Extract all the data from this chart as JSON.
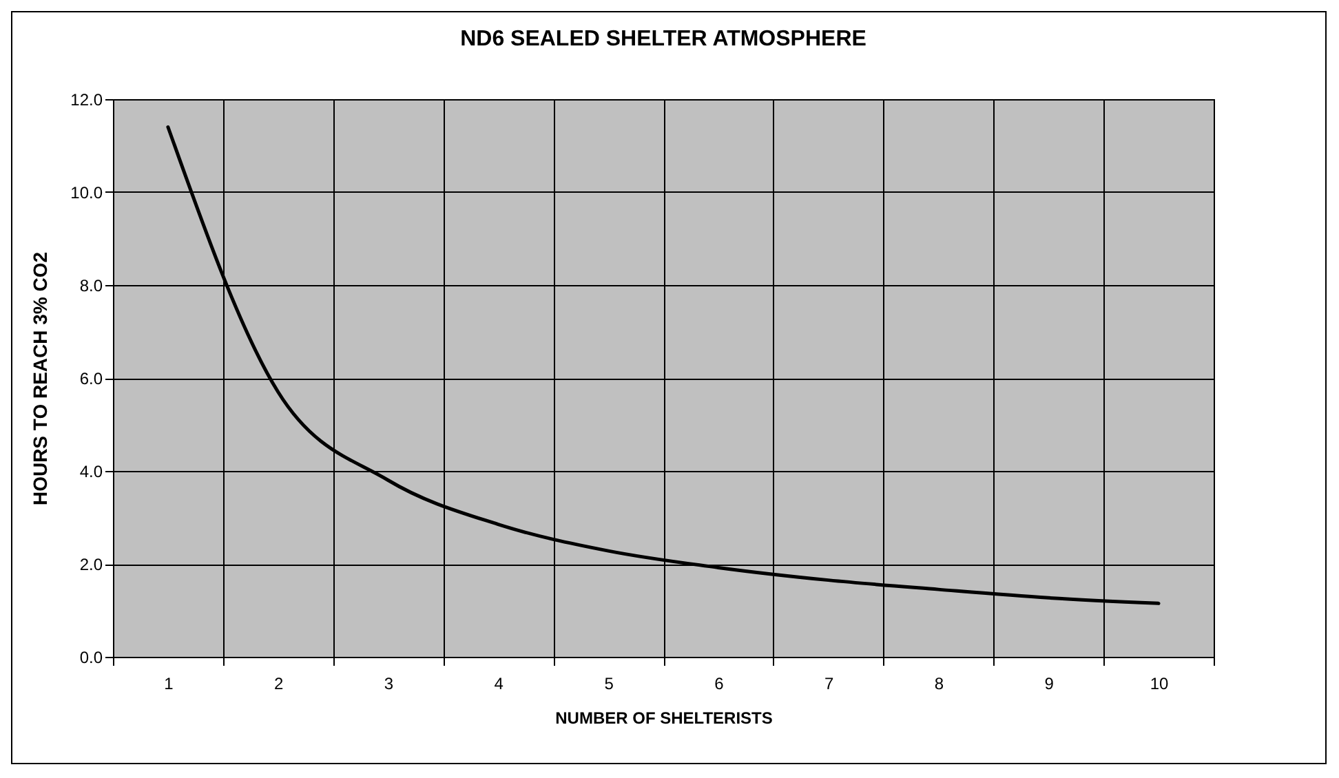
{
  "chart_data": {
    "type": "line",
    "title": "ND6 SEALED SHELTER ATMOSPHERE",
    "xlabel": "NUMBER  OF  SHELTERISTS",
    "ylabel": "HOURS  TO REACH   3% CO2",
    "categories": [
      "1",
      "2",
      "3",
      "4",
      "5",
      "6",
      "7",
      "8",
      "9",
      "10"
    ],
    "series": [
      {
        "color": "#000000",
        "values": [
          11.4,
          5.7,
          3.8,
          2.85,
          2.28,
          1.92,
          1.65,
          1.45,
          1.27,
          1.15
        ]
      }
    ],
    "ylim": [
      0,
      12
    ],
    "yticks": [
      {
        "value": 0,
        "label": "0.0"
      },
      {
        "value": 2,
        "label": "2.0"
      },
      {
        "value": 4,
        "label": "4.0"
      },
      {
        "value": 6,
        "label": "6.0"
      },
      {
        "value": 8,
        "label": "8.0"
      },
      {
        "value": 10,
        "label": "10.0"
      },
      {
        "value": 12,
        "label": "12.0"
      }
    ],
    "grid": true,
    "marker": "none",
    "line_style": "solid"
  }
}
